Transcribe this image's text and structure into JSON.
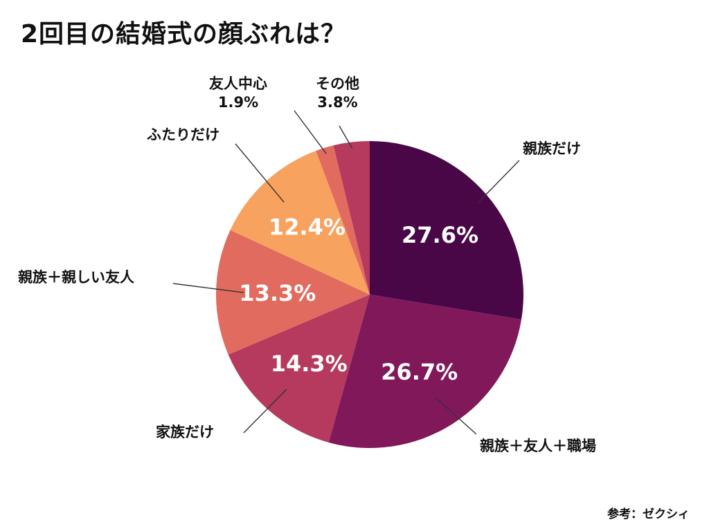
{
  "chart_data": {
    "type": "pie",
    "title": "2回目の結婚式の顔ぶれは？",
    "start_angle_deg": 0,
    "direction": "clockwise",
    "slices": [
      {
        "label": "親族だけ",
        "value": 27.6,
        "display": "27.6%",
        "color": "#4a0747",
        "label_color": "#ffffff"
      },
      {
        "label": "親族＋友人＋職場",
        "value": 26.7,
        "display": "26.7%",
        "color": "#80185a",
        "label_color": "#ffffff"
      },
      {
        "label": "家族だけ",
        "value": 14.3,
        "display": "14.3%",
        "color": "#b53a5e",
        "label_color": "#ffffff"
      },
      {
        "label": "親族＋親しい友人",
        "value": 13.3,
        "display": "13.3%",
        "color": "#e16b5e",
        "label_color": "#ffffff"
      },
      {
        "label": "ふたりだけ",
        "value": 12.4,
        "display": "12.4%",
        "color": "#f8a25f",
        "label_color": "#ffffff"
      },
      {
        "label": "友人中心",
        "value": 1.9,
        "display": "1.9%",
        "color": "#e16b5e",
        "label_color": "#111111"
      },
      {
        "label": "その他",
        "value": 3.8,
        "display": "3.8%",
        "color": "#b53a5e",
        "label_color": "#111111"
      }
    ]
  },
  "footer": {
    "source": "参考：ゼクシィ"
  }
}
